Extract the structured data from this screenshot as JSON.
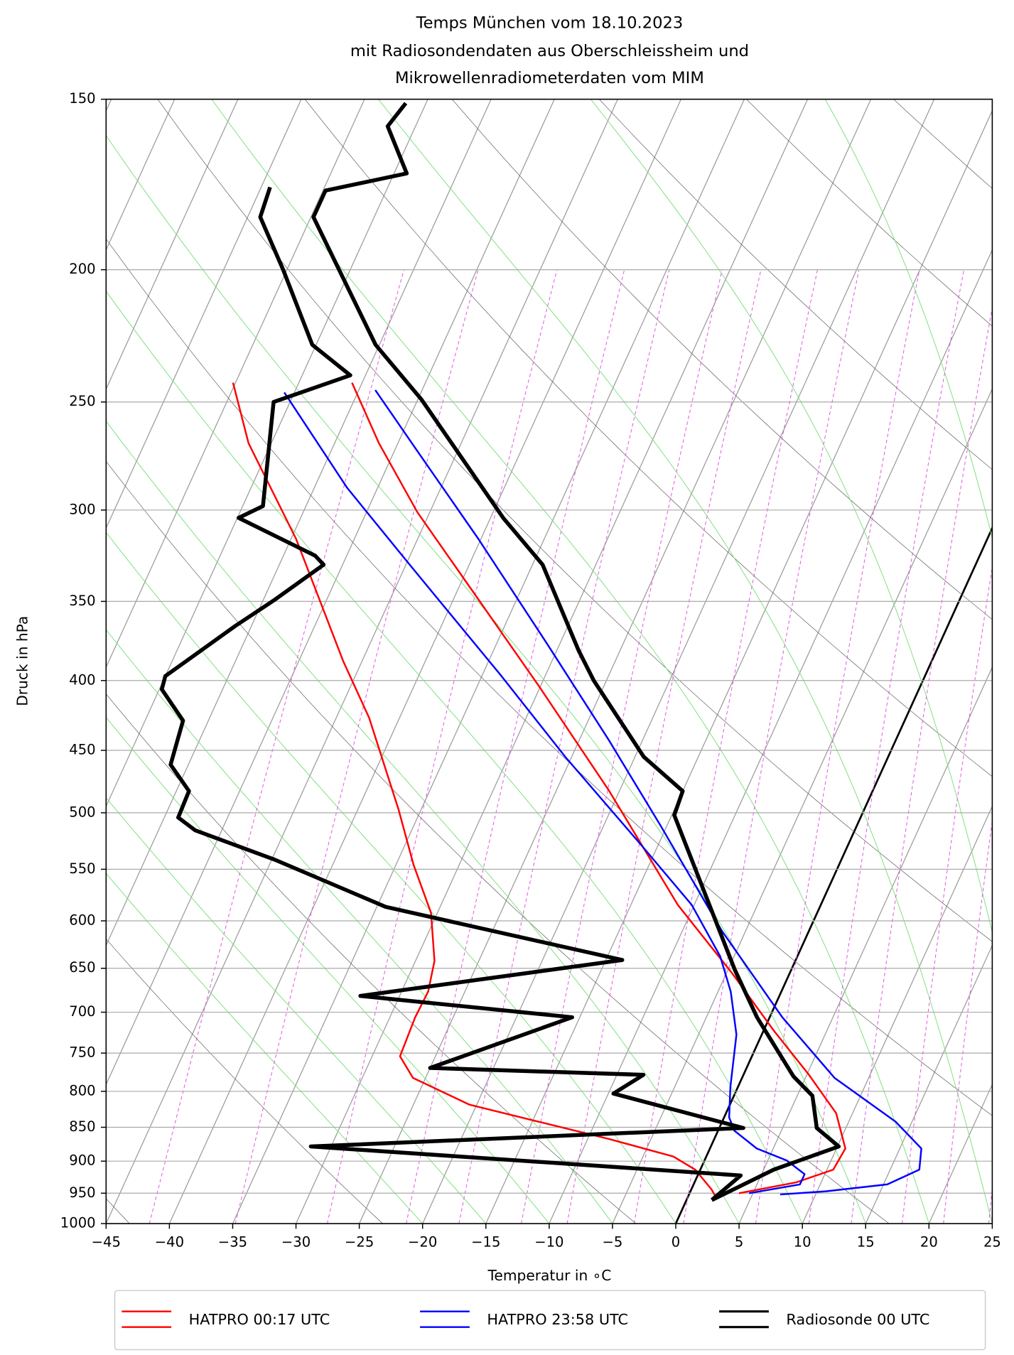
{
  "chart_data": {
    "type": "skewt",
    "title": [
      "Temps München vom 18.10.2023",
      "mit Radiosondendaten aus Oberschleissheim und",
      "Mikrowellenradiometerdaten vom MIM"
    ],
    "xlabel": "Temperatur in ∘C",
    "ylabel": "Druck in hPa",
    "xlim": [
      -45,
      25
    ],
    "ylim": [
      1000,
      150
    ],
    "log_y": true,
    "grid": true,
    "legend": "bottom",
    "xticks": [
      {
        "value": -45,
        "label": "−45"
      },
      {
        "value": -40,
        "label": "−40"
      },
      {
        "value": -35,
        "label": "−35"
      },
      {
        "value": -30,
        "label": "−30"
      },
      {
        "value": -25,
        "label": "−25"
      },
      {
        "value": -20,
        "label": "−20"
      },
      {
        "value": -15,
        "label": "−15"
      },
      {
        "value": -10,
        "label": "−10"
      },
      {
        "value": -5,
        "label": "−5"
      },
      0,
      5,
      10,
      15,
      20,
      25
    ],
    "yticks": [
      150,
      200,
      250,
      300,
      350,
      400,
      450,
      500,
      550,
      600,
      650,
      700,
      750,
      800,
      850,
      900,
      950,
      1000
    ],
    "series": [
      {
        "name": "HATPRO 00:17 UTC",
        "color": "#ff0000",
        "linewidth": 2,
        "lines": [
          {
            "pressure": [
              950,
              933,
              913,
              881,
              830,
              777,
              722,
              656,
              584,
              482,
              404,
              349,
              301,
              268,
              242
            ],
            "values": [
              3.9,
              8.0,
              10.5,
              10.7,
              8.7,
              5.1,
              0.8,
              -4.5,
              -11.3,
              -20.8,
              -30.1,
              -38.0,
              -46.0,
              -51.5,
              -55.8
            ]
          },
          {
            "pressure": [
              954,
              944,
              913,
              893,
              867,
              842,
              818,
              782,
              754,
              706,
              676,
              642,
              592,
              546,
              497,
              426,
              387,
              315,
              268,
              242
            ],
            "values": [
              2.1,
              1.6,
              -0.4,
              -2.6,
              -8.3,
              -14.5,
              -20.6,
              -26.0,
              -27.8,
              -28.0,
              -27.9,
              -28.5,
              -30.5,
              -33.6,
              -36.8,
              -42.4,
              -46.5,
              -54.6,
              -61.8,
              -65.2
            ]
          }
        ]
      },
      {
        "name": "HATPRO 23:58 UTC",
        "color": "#0000ff",
        "linewidth": 2,
        "lines": [
          {
            "pressure": [
              952,
              947,
              936,
              913,
              881,
              842,
              782,
              706,
              610,
              511,
              442,
              376,
              315,
              272,
              245
            ],
            "values": [
              7.2,
              10.7,
              15.3,
              17.3,
              16.7,
              13.7,
              7.3,
              1.0,
              -6.9,
              -15.5,
              -22.7,
              -31.0,
              -40.2,
              -48.1,
              -53.7
            ]
          },
          {
            "pressure": [
              950,
              936,
              920,
              899,
              881,
              855,
              836,
              794,
              727,
              676,
              637,
              584,
              530,
              455,
              396,
              329,
              289,
              246
            ],
            "values": [
              4.7,
              8.4,
              8.4,
              6.5,
              3.7,
              1.3,
              0.4,
              -0.6,
              -2.0,
              -4.0,
              -6.1,
              -10.2,
              -16.1,
              -25.5,
              -33.6,
              -44.7,
              -52.4,
              -60.8
            ]
          }
        ]
      },
      {
        "name": "Radiosonde 00 UTC",
        "color": "#000000",
        "linewidth": 4.5,
        "lines": [
          {
            "pressure": [
              961,
              913,
              878,
              851,
              806,
              780,
              706,
              651,
              502,
              482,
              455,
              400,
              380,
              329,
              304,
              249,
              227,
              183,
              175,
              170,
              157,
              151
            ],
            "values": [
              2.0,
              5.8,
              10.1,
              7.7,
              6.2,
              4.0,
              -1.0,
              -4.5,
              -14.8,
              -15.0,
              -19.3,
              -26.0,
              -28.3,
              -34.2,
              -39.0,
              -49.7,
              -55.3,
              -64.8,
              -64.8,
              -59.0,
              -62.2,
              -61.6
            ]
          },
          {
            "pressure": [
              961,
              922,
              878,
              851,
              803,
              778,
              769,
              706,
              681,
              641,
              586,
              541,
              515,
              504,
              482,
              461,
              428,
              406,
              397,
              365,
              349,
              329,
              324,
              304,
              298,
              250,
              239,
              227,
              200,
              183,
              174
            ],
            "values": [
              2.0,
              3.4,
              -31.6,
              1.9,
              -9.6,
              -7.9,
              -25.0,
              -15.6,
              -33.1,
              -13.7,
              -34.3,
              -44.8,
              -52.1,
              -53.9,
              -54.0,
              -56.4,
              -57.0,
              -59.8,
              -60.0,
              -56.3,
              -54.1,
              -51.5,
              -52.5,
              -59.9,
              -58.4,
              -61.3,
              -56.2,
              -60.3,
              -65.3,
              -69.0,
              -69.3
            ]
          }
        ]
      }
    ]
  }
}
